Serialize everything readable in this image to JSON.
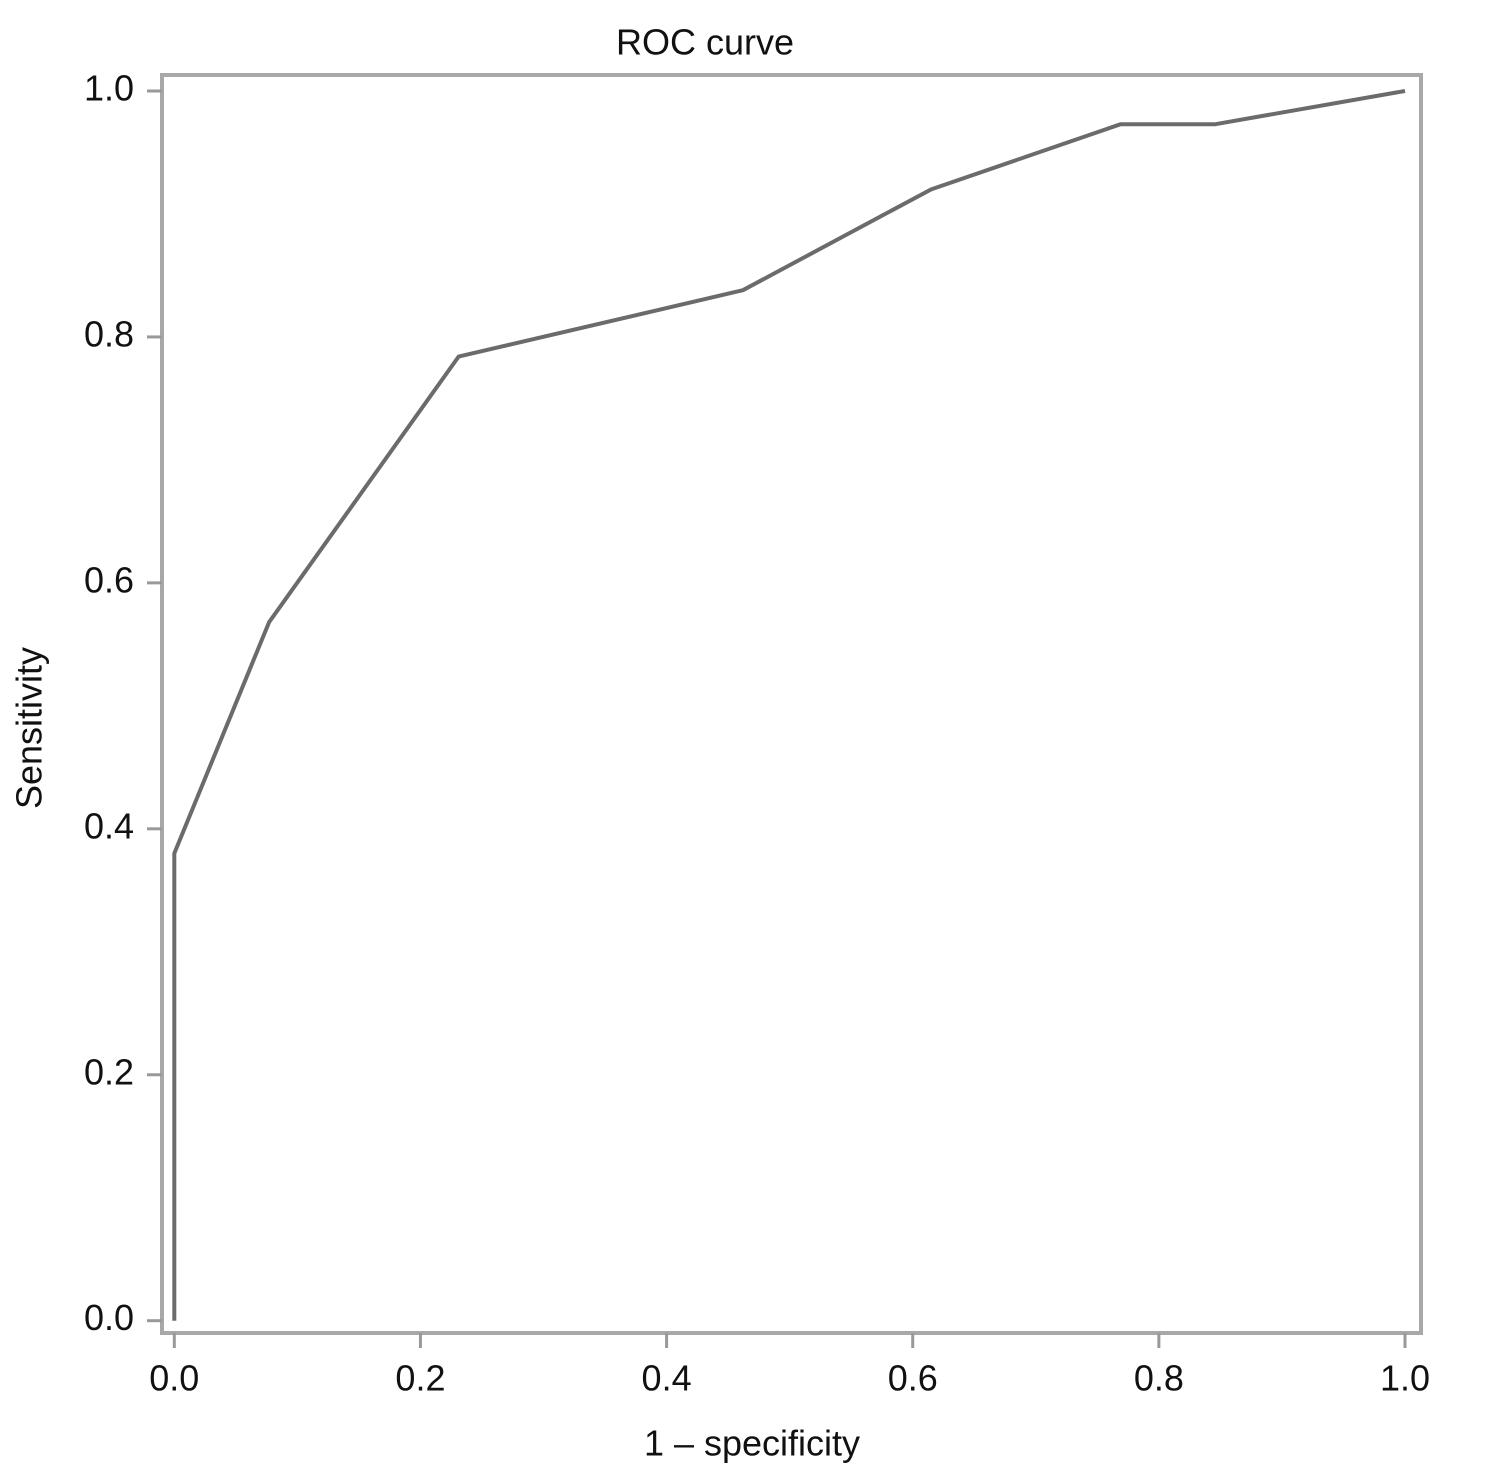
{
  "chart_data": {
    "type": "line",
    "title": "ROC curve",
    "x_label": "1 – specificity",
    "y_label": "Sensitivity",
    "x": [
      0,
      0,
      0.077,
      0.231,
      0.462,
      0.615,
      0.769,
      0.846,
      1
    ],
    "series": [
      {
        "color": "#6b6b6b",
        "values": [
          0,
          0.38,
          0.568,
          0.784,
          0.838,
          0.92,
          0.973,
          0.973,
          1
        ]
      }
    ],
    "xlim": [
      -0.01,
      1.013
    ],
    "ylim": [
      -0.01,
      1.013
    ],
    "xticks": [
      {
        "value": 0,
        "label": "0.0"
      },
      0.2,
      0.4,
      0.6,
      0.8,
      {
        "value": 1,
        "label": "1.0"
      }
    ],
    "yticks": [
      {
        "value": 0,
        "label": "0.0"
      },
      0.2,
      0.4,
      0.6,
      0.8,
      {
        "value": 1,
        "label": "1.0"
      }
    ],
    "grid": false
  }
}
